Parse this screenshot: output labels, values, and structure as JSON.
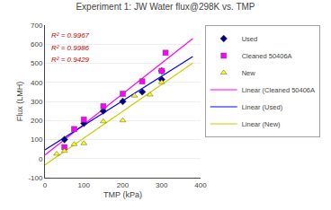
{
  "chart_data": {
    "type": "scatter",
    "title": "Experiment 1: JW Water flux@298K vs. TMP",
    "xlabel": "TMP (kPa)",
    "ylabel": "Flux (LMH)",
    "xlim": [
      0,
      400
    ],
    "ylim": [
      -100,
      700
    ],
    "xticks": [
      0,
      100,
      200,
      300,
      400
    ],
    "yticks": [
      -100,
      0,
      100,
      200,
      300,
      400,
      500,
      600,
      700
    ],
    "grid": "y",
    "legend": "right",
    "series": [
      {
        "name": "Used",
        "type": "scatter",
        "marker": "diamond",
        "color": "#000080",
        "x": [
          50,
          100,
          150,
          200,
          250,
          300,
          300
        ],
        "values": [
          100,
          185,
          250,
          300,
          350,
          415,
          460
        ]
      },
      {
        "name": "Cleaned 50406A",
        "type": "scatter",
        "marker": "square",
        "color": "#ff00ff",
        "x": [
          50,
          75,
          100,
          150,
          200,
          250,
          300,
          310
        ],
        "values": [
          60,
          155,
          205,
          275,
          340,
          405,
          460,
          555
        ]
      },
      {
        "name": "New",
        "type": "scatter",
        "marker": "triangle",
        "color": "#ffff00",
        "x": [
          30,
          50,
          75,
          100,
          150,
          200,
          230,
          270,
          300
        ],
        "values": [
          25,
          40,
          75,
          80,
          195,
          200,
          330,
          335,
          400
        ]
      },
      {
        "name": "Linear (Cleaned 50406A",
        "type": "line",
        "line_style": "solid",
        "color": "#ff00ff",
        "x": [
          0,
          380
        ],
        "values": [
          18.8901,
          628.9766
        ]
      },
      {
        "name": "Linear (Used)",
        "type": "line",
        "line_style": "solid",
        "color": "#0000ff",
        "x": [
          0,
          380
        ],
        "values": [
          45.5,
          535.7
        ]
      },
      {
        "name": "Linear (New)",
        "type": "line",
        "line_style": "solid",
        "color": "#cccc00",
        "x": [
          0,
          380
        ],
        "values": [
          -32.9376,
          501.6151
        ]
      }
    ],
    "annotations": [
      {
        "text": "R² = 0.9967",
        "color": "#cc0000"
      },
      {
        "text": "R² = 0.9986",
        "color": "#cc0000"
      },
      {
        "text": "R² = 0.9429",
        "color": "#cc0000"
      }
    ]
  }
}
